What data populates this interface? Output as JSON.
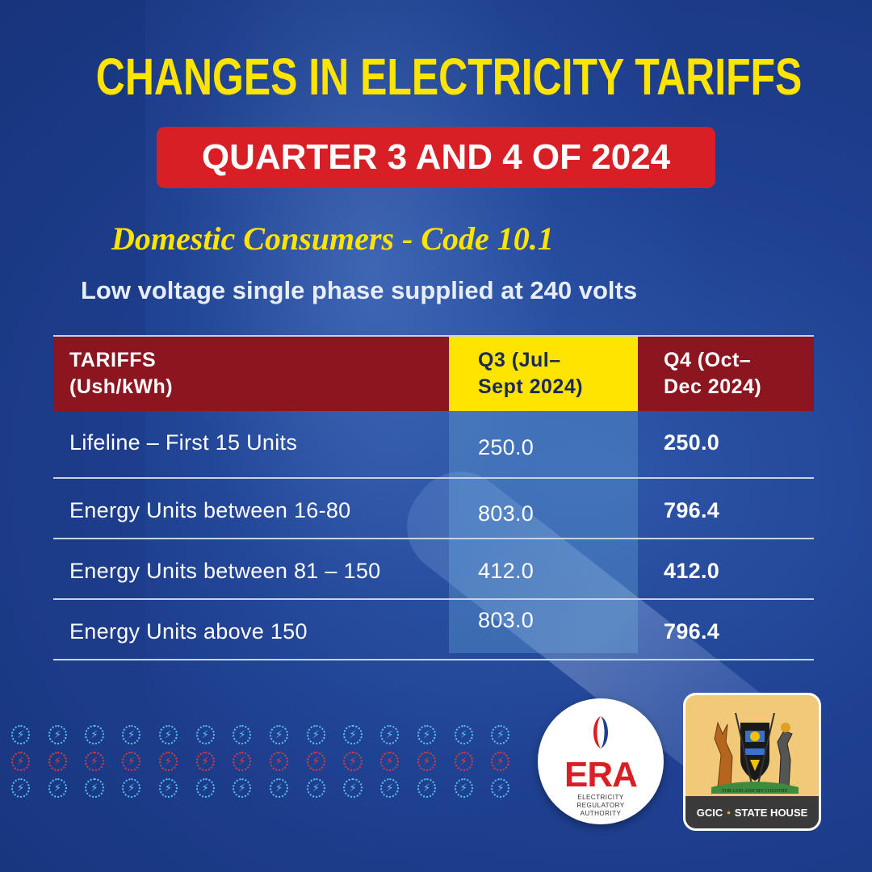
{
  "header": {
    "title": "CHANGES IN ELECTRICITY TARIFFS",
    "banner": "QUARTER 3 AND 4 OF 2024",
    "subtitle": "Domestic Consumers - Code 10.1",
    "description": "Low voltage single phase supplied at 240 volts"
  },
  "table": {
    "headers": {
      "col1_line1": "TARIFFS",
      "col1_line2": "(Ush/kWh)",
      "col2_line1": "Q3 (Jul–",
      "col2_line2": "Sept 2024)",
      "col3_line1": "Q4 (Oct–",
      "col3_line2": "Dec 2024)"
    },
    "rows": [
      {
        "label": "Lifeline – First 15 Units",
        "q3": "250.0",
        "q4": "250.0"
      },
      {
        "label": "Energy Units between 16-80",
        "q3": "803.0",
        "q4": "796.4"
      },
      {
        "label": "Energy Units between 81 – 150",
        "q3": "412.0",
        "q4": "412.0"
      },
      {
        "label": "Energy Units above 150",
        "q3": "803.0",
        "q4": "796.4"
      }
    ]
  },
  "logos": {
    "era_name": "ERA",
    "era_full": "ELECTRICITY REGULATORY AUTHORITY",
    "coat_motto": "FOR GOD AND MY COUNTRY",
    "gcic_left": "GCIC",
    "gcic_sep": "•",
    "gcic_right": "STATE HOUSE"
  },
  "colors": {
    "background": "#1f4091",
    "title_yellow": "#ffe400",
    "banner_red": "#d81f26",
    "header_maroon": "#8b1620"
  }
}
